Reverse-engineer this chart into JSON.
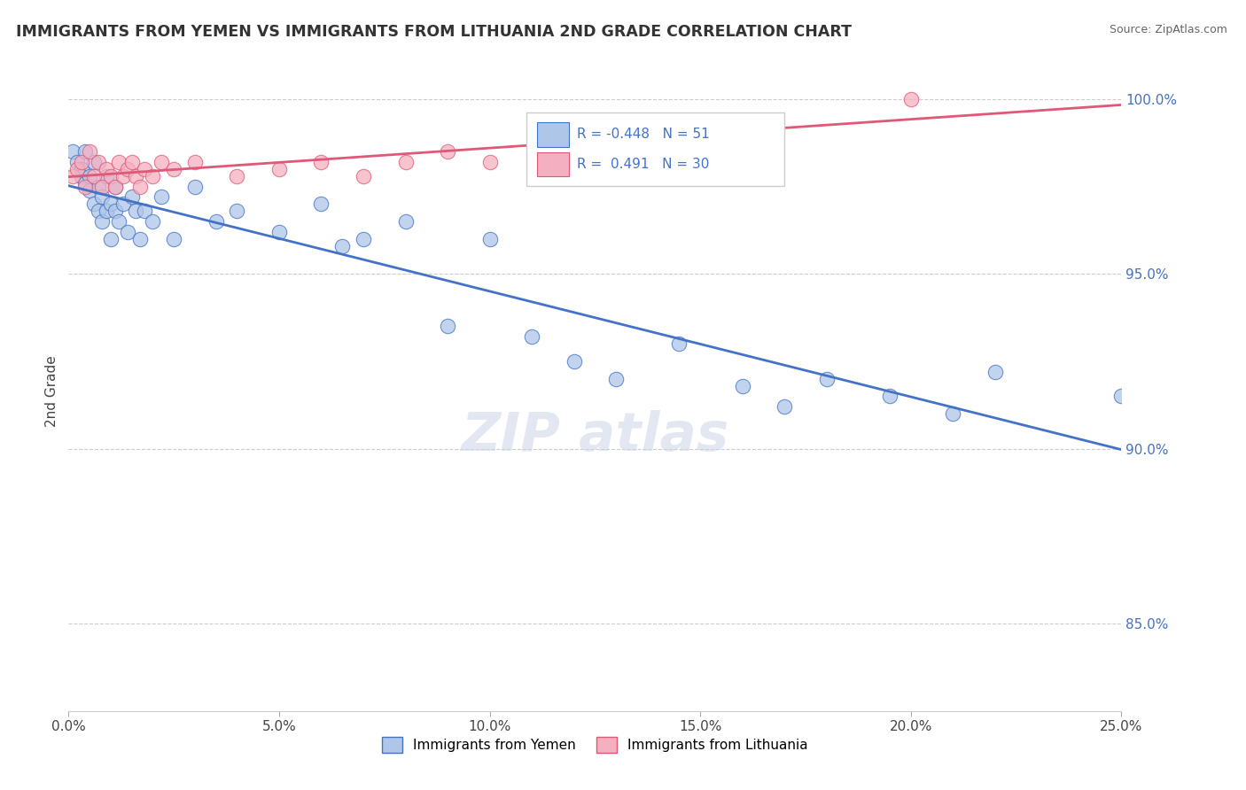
{
  "title": "IMMIGRANTS FROM YEMEN VS IMMIGRANTS FROM LITHUANIA 2ND GRADE CORRELATION CHART",
  "source": "Source: ZipAtlas.com",
  "ylabel": "2nd Grade",
  "xlim": [
    0.0,
    0.25
  ],
  "ylim": [
    0.825,
    1.008
  ],
  "xticks": [
    0.0,
    0.05,
    0.1,
    0.15,
    0.2,
    0.25
  ],
  "xtick_labels": [
    "0.0%",
    "5.0%",
    "10.0%",
    "15.0%",
    "20.0%",
    "25.0%"
  ],
  "yticks": [
    0.85,
    0.9,
    0.95,
    1.0
  ],
  "ytick_labels": [
    "85.0%",
    "90.0%",
    "95.0%",
    "100.0%"
  ],
  "legend_r1": "-0.448",
  "legend_n1": "51",
  "legend_r2": "0.491",
  "legend_n2": "30",
  "color_yemen": "#aec6e8",
  "color_lithuania": "#f4afc0",
  "line_color_yemen": "#4472c4",
  "line_color_lithuania": "#e05878",
  "yemen_x": [
    0.001,
    0.002,
    0.003,
    0.003,
    0.004,
    0.004,
    0.005,
    0.005,
    0.006,
    0.006,
    0.007,
    0.007,
    0.008,
    0.008,
    0.009,
    0.009,
    0.01,
    0.01,
    0.011,
    0.011,
    0.012,
    0.013,
    0.014,
    0.015,
    0.016,
    0.017,
    0.018,
    0.02,
    0.022,
    0.025,
    0.03,
    0.035,
    0.04,
    0.05,
    0.06,
    0.065,
    0.07,
    0.08,
    0.09,
    0.1,
    0.11,
    0.12,
    0.13,
    0.145,
    0.16,
    0.17,
    0.18,
    0.195,
    0.21,
    0.22,
    0.25
  ],
  "yemen_y": [
    0.985,
    0.982,
    0.98,
    0.978,
    0.985,
    0.976,
    0.978,
    0.974,
    0.982,
    0.97,
    0.975,
    0.968,
    0.972,
    0.965,
    0.978,
    0.968,
    0.97,
    0.96,
    0.968,
    0.975,
    0.965,
    0.97,
    0.962,
    0.972,
    0.968,
    0.96,
    0.968,
    0.965,
    0.972,
    0.96,
    0.975,
    0.965,
    0.968,
    0.962,
    0.97,
    0.958,
    0.96,
    0.965,
    0.935,
    0.96,
    0.932,
    0.925,
    0.92,
    0.93,
    0.918,
    0.912,
    0.92,
    0.915,
    0.91,
    0.922,
    0.915
  ],
  "lithuania_x": [
    0.001,
    0.002,
    0.003,
    0.004,
    0.005,
    0.006,
    0.007,
    0.008,
    0.009,
    0.01,
    0.011,
    0.012,
    0.013,
    0.014,
    0.015,
    0.016,
    0.017,
    0.018,
    0.02,
    0.022,
    0.025,
    0.03,
    0.04,
    0.05,
    0.06,
    0.07,
    0.08,
    0.09,
    0.1,
    0.2
  ],
  "lithuania_y": [
    0.978,
    0.98,
    0.982,
    0.975,
    0.985,
    0.978,
    0.982,
    0.975,
    0.98,
    0.978,
    0.975,
    0.982,
    0.978,
    0.98,
    0.982,
    0.978,
    0.975,
    0.98,
    0.978,
    0.982,
    0.98,
    0.982,
    0.978,
    0.98,
    0.982,
    0.978,
    0.982,
    0.985,
    0.982,
    1.0
  ]
}
